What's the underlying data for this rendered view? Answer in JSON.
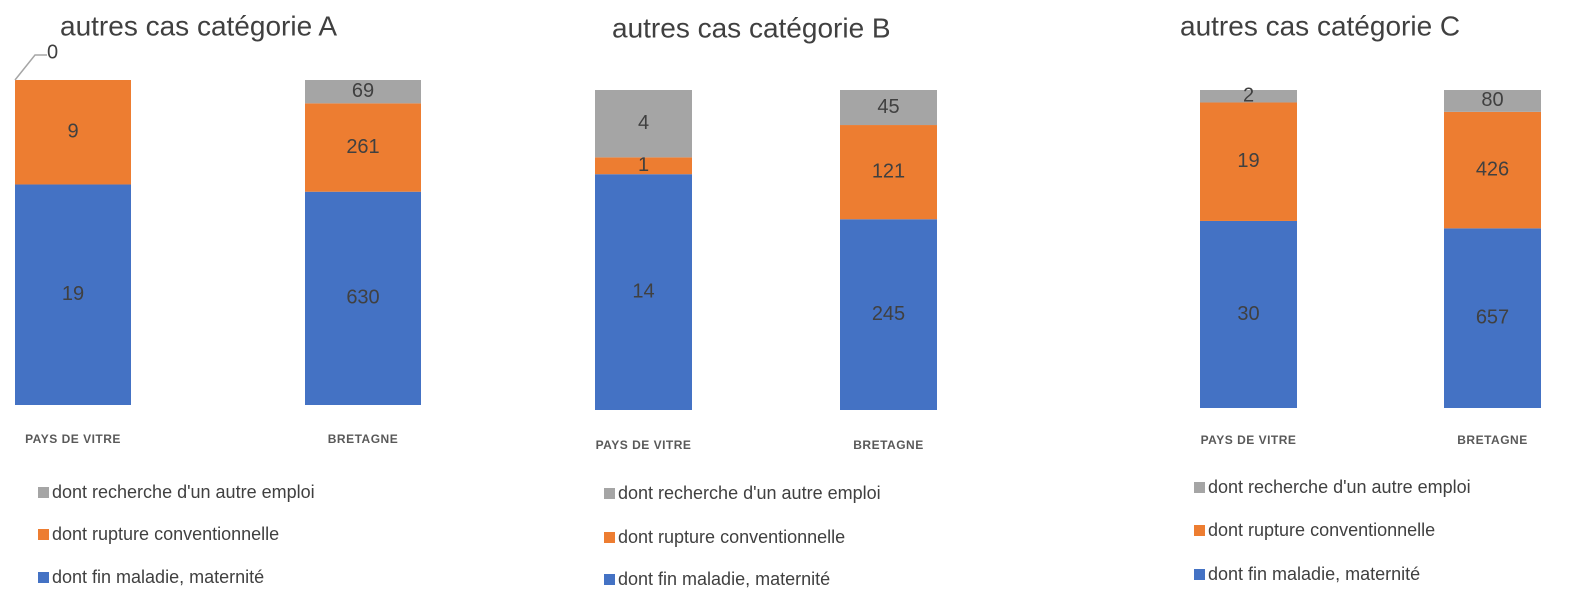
{
  "chart_data": [
    {
      "type": "bar",
      "stacking": "percent",
      "title": "autres cas catégorie A",
      "categories": [
        "PAYS DE VITRE",
        "BRETAGNE"
      ],
      "series": [
        {
          "name": "dont fin maladie, maternité",
          "color": "#4472c4",
          "values": [
            19,
            630
          ]
        },
        {
          "name": "dont rupture conventionnelle",
          "color": "#ed7d31",
          "values": [
            9,
            261
          ]
        },
        {
          "name": "dont recherche d'un autre emploi",
          "color": "#a5a5a5",
          "values": [
            0,
            69
          ]
        }
      ]
    },
    {
      "type": "bar",
      "stacking": "percent",
      "title": "autres cas catégorie B",
      "categories": [
        "PAYS DE VITRE",
        "BRETAGNE"
      ],
      "series": [
        {
          "name": "dont fin maladie, maternité",
          "color": "#4472c4",
          "values": [
            14,
            245
          ]
        },
        {
          "name": "dont rupture conventionnelle",
          "color": "#ed7d31",
          "values": [
            1,
            121
          ]
        },
        {
          "name": "dont recherche d'un autre emploi",
          "color": "#a5a5a5",
          "values": [
            4,
            45
          ]
        }
      ]
    },
    {
      "type": "bar",
      "stacking": "percent",
      "title": "autres cas catégorie C",
      "categories": [
        "PAYS DE VITRE",
        "BRETAGNE"
      ],
      "series": [
        {
          "name": "dont fin maladie, maternité",
          "color": "#4472c4",
          "values": [
            30,
            657
          ]
        },
        {
          "name": "dont rupture conventionnelle",
          "color": "#ed7d31",
          "values": [
            19,
            426
          ]
        },
        {
          "name": "dont recherche d'un autre emploi",
          "color": "#a5a5a5",
          "values": [
            2,
            80
          ]
        }
      ]
    }
  ]
}
